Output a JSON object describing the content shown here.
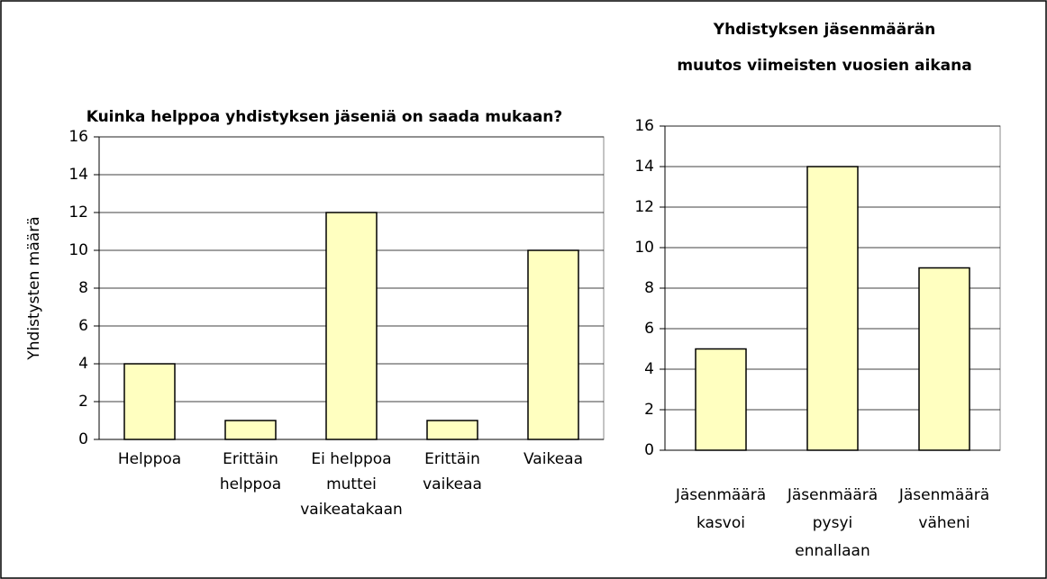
{
  "chart_data": [
    {
      "type": "bar",
      "title": [
        "Kuinka helppoa yhdistyksen jäseniä on saada mukaan?"
      ],
      "ylabel": "Yhdistysten määrä",
      "categories": [
        [
          "Helppoa"
        ],
        [
          "Erittäin",
          "helppoa"
        ],
        [
          "Ei helppoa",
          "muttei",
          "vaikeatakaan"
        ],
        [
          "Erittäin",
          "vaikeaa"
        ],
        [
          "Vaikeaa"
        ]
      ],
      "values": [
        4,
        1,
        12,
        1,
        10
      ],
      "color": "#ffffc0",
      "ylim": [
        0,
        16
      ],
      "yticks": [
        0,
        2,
        4,
        6,
        8,
        10,
        12,
        14,
        16
      ],
      "grid": true
    },
    {
      "type": "bar",
      "title": [
        "Yhdistyksen jäsenmäärän",
        "muutos viimeisten vuosien aikana"
      ],
      "categories": [
        [
          "Jäsenmäärä",
          "kasvoi"
        ],
        [
          "Jäsenmäärä",
          "pysyi",
          "ennallaan"
        ],
        [
          "Jäsenmäärä",
          "väheni"
        ]
      ],
      "values": [
        5,
        14,
        9
      ],
      "color": "#ffffc0",
      "ylim": [
        0,
        16
      ],
      "yticks": [
        0,
        2,
        4,
        6,
        8,
        10,
        12,
        14,
        16
      ],
      "grid": true
    }
  ]
}
